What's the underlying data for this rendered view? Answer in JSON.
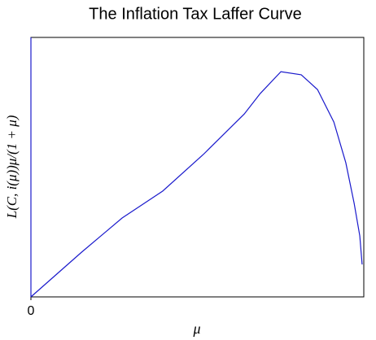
{
  "chart_data": {
    "type": "line",
    "title": "The Inflation Tax Laffer Curve",
    "x_label": "μ",
    "y_label": "L(C, i(μ))μ/(1 + μ)",
    "x": [
      0,
      0.152,
      0.274,
      0.396,
      0.518,
      0.641,
      0.689,
      0.751,
      0.812,
      0.861,
      0.91,
      0.946,
      0.971,
      0.988,
      0.995
    ],
    "series": [
      {
        "color": "#1a1acc",
        "values": [
          0,
          0.172,
          0.304,
          0.408,
          0.549,
          0.705,
          0.784,
          0.868,
          0.856,
          0.799,
          0.674,
          0.517,
          0.361,
          0.235,
          0.125
        ]
      }
    ],
    "xlim": [
      0,
      1
    ],
    "ylim": [
      0,
      1
    ],
    "xticks": [
      0
    ],
    "yticks": []
  }
}
